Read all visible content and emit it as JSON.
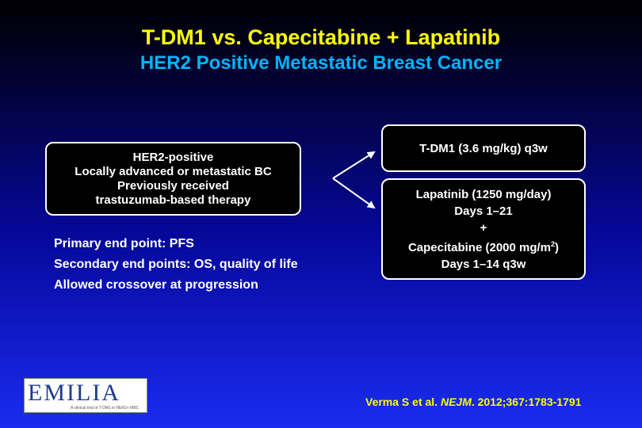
{
  "title": "T-DM1 vs. Capecitabine + Lapatinib",
  "subtitle": "HER2 Positive Metastatic Breast Cancer",
  "eligibility_box": {
    "lines": [
      "HER2-positive",
      "Locally advanced or metastatic BC",
      "Previously received",
      "trastuzumab-based therapy"
    ]
  },
  "endpoints": [
    "Primary end point: PFS",
    "Secondary end points: OS, quality of life",
    "Allowed crossover at progression"
  ],
  "arm_tdm1": {
    "label": "T-DM1 (3.6 mg/kg) q3w"
  },
  "arm_combo": {
    "line1": "Lapatinib (1250 mg/day)",
    "line2": "Days 1–21",
    "line3": "+",
    "line4_main": "Capecitabine (2000 mg/m",
    "line4_sup": "2",
    "line4_end": ")",
    "line5": "Days 1–14 q3w"
  },
  "logo": {
    "text": "EMILIA",
    "tagline": "A clinical trial of T-DM1 in HER2+ MBC"
  },
  "citation": {
    "prefix": "Verma S et al. ",
    "journal": "NEJM",
    "suffix": ". 2012;367:1783-1791"
  },
  "colors": {
    "title": "#ffff00",
    "subtitle": "#00b4ff",
    "box_fill": "#000000",
    "box_border": "#ffffff",
    "citation": "#ffff00"
  }
}
